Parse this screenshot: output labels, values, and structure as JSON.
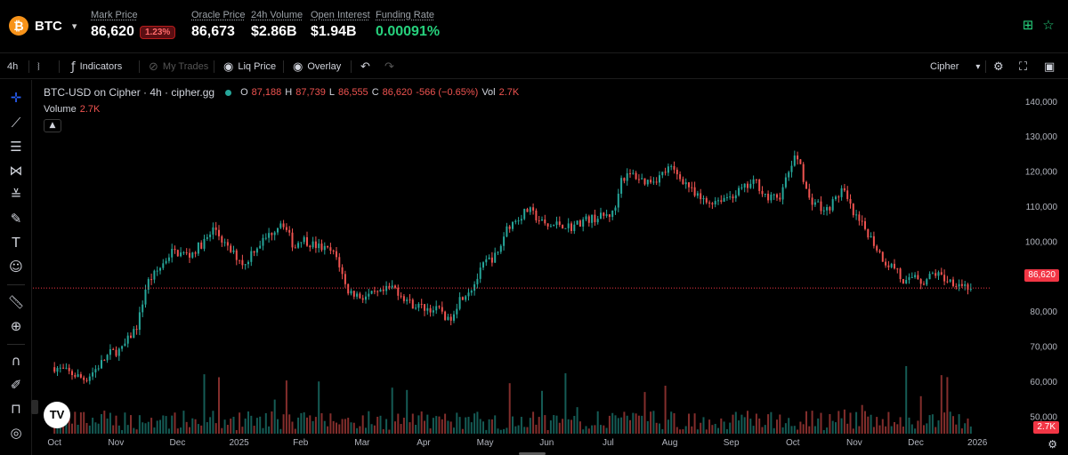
{
  "market": {
    "symbol": "BTC",
    "logo_glyph": "₿",
    "mark_price_label": "Mark Price",
    "mark_price": "86,620",
    "change_badge": "1.23%",
    "oracle_label": "Oracle Price",
    "oracle_price": "86,673",
    "volume_label": "24h Volume",
    "volume": "$2.86B",
    "oi_label": "Open Interest",
    "oi": "$1.94B",
    "funding_label": "Funding Rate",
    "funding": "0.00091%",
    "accent_green": "#26d07c",
    "icons": [
      "grid-icon",
      "star-icon"
    ]
  },
  "toolbar": {
    "interval": "4h",
    "indicators": "Indicators",
    "my_trades": "My Trades",
    "liq_price": "Liq Price",
    "overlay": "Overlay",
    "source": "Cipher"
  },
  "legend": {
    "title": "BTC-USD on Cipher · 4h · cipher.gg",
    "o_label": "O",
    "o": "87,188",
    "h_label": "H",
    "h": "87,739",
    "l_label": "L",
    "l": "86,555",
    "c_label": "C",
    "c": "86,620",
    "change": "-566 (−0.65%)",
    "vol_label": "Vol",
    "vol": "2.7K",
    "volume_label": "Volume",
    "volume_value": "2.7K"
  },
  "price_tag": "86,620",
  "volume_tag": "2.7K",
  "tv_logo": "TV",
  "colors": {
    "up": "#26a69a",
    "down": "#ef5350",
    "last_price": "#f23645",
    "active_tool": "#2962ff"
  },
  "chart_data": {
    "type": "candlestick",
    "y_ticks": [
      "140,000",
      "130,000",
      "120,000",
      "110,000",
      "100,000",
      "90,000",
      "80,000",
      "70,000",
      "60,000",
      "50,000"
    ],
    "ylim": [
      45000,
      143000
    ],
    "last_price": 86620,
    "x_ticks": [
      "Oct",
      "Nov",
      "Dec",
      "2025",
      "Feb",
      "Mar",
      "Apr",
      "May",
      "Jun",
      "Jul",
      "Aug",
      "Sep",
      "Oct",
      "Nov",
      "Dec",
      "2026"
    ],
    "x_tick_months": [
      0,
      1,
      2,
      3,
      4,
      5,
      6,
      7,
      8,
      9,
      10,
      11,
      12,
      13,
      14,
      15
    ],
    "xlim_months": [
      -0.35,
      15.2
    ],
    "series_close": [
      [
        0.0,
        64000
      ],
      [
        0.3,
        62000
      ],
      [
        0.5,
        60500
      ],
      [
        0.7,
        64000
      ],
      [
        0.9,
        68000
      ],
      [
        1.1,
        69000
      ],
      [
        1.2,
        72000
      ],
      [
        1.35,
        76000
      ],
      [
        1.5,
        88000
      ],
      [
        1.7,
        92000
      ],
      [
        1.9,
        97000
      ],
      [
        2.2,
        96000
      ],
      [
        2.5,
        101000
      ],
      [
        2.6,
        104000
      ],
      [
        2.8,
        98000
      ],
      [
        3.0,
        95000
      ],
      [
        3.1,
        93000
      ],
      [
        3.2,
        97000
      ],
      [
        3.5,
        102000
      ],
      [
        3.7,
        106000
      ],
      [
        3.9,
        98000
      ],
      [
        4.0,
        101000
      ],
      [
        4.2,
        99000
      ],
      [
        4.5,
        97000
      ],
      [
        4.6,
        95000
      ],
      [
        4.75,
        86000
      ],
      [
        5.0,
        84000
      ],
      [
        5.3,
        85000
      ],
      [
        5.5,
        87000
      ],
      [
        5.8,
        82000
      ],
      [
        6.0,
        81000
      ],
      [
        6.3,
        80000
      ],
      [
        6.4,
        77000
      ],
      [
        6.6,
        84000
      ],
      [
        6.8,
        87000
      ],
      [
        7.0,
        94000
      ],
      [
        7.2,
        96000
      ],
      [
        7.35,
        104000
      ],
      [
        7.5,
        106000
      ],
      [
        7.7,
        109000
      ],
      [
        8.0,
        104000
      ],
      [
        8.2,
        105000
      ],
      [
        8.4,
        104000
      ],
      [
        8.6,
        106000
      ],
      [
        8.9,
        107000
      ],
      [
        9.1,
        108000
      ],
      [
        9.2,
        118000
      ],
      [
        9.4,
        119000
      ],
      [
        9.6,
        117000
      ],
      [
        9.8,
        118000
      ],
      [
        10.0,
        121000
      ],
      [
        10.3,
        116000
      ],
      [
        10.4,
        113000
      ],
      [
        10.6,
        111000
      ],
      [
        10.8,
        112000
      ],
      [
        11.0,
        113000
      ],
      [
        11.3,
        116000
      ],
      [
        11.4,
        117000
      ],
      [
        11.6,
        112000
      ],
      [
        11.8,
        113000
      ],
      [
        12.0,
        123000
      ],
      [
        12.1,
        124000
      ],
      [
        12.25,
        112000
      ],
      [
        12.4,
        111000
      ],
      [
        12.5,
        108000
      ],
      [
        12.7,
        112000
      ],
      [
        12.8,
        115000
      ],
      [
        13.0,
        107000
      ],
      [
        13.2,
        103000
      ],
      [
        13.5,
        94000
      ],
      [
        13.7,
        92000
      ],
      [
        13.8,
        87000
      ],
      [
        14.0,
        91000
      ],
      [
        14.1,
        88000
      ],
      [
        14.3,
        91000
      ],
      [
        14.5,
        89000
      ],
      [
        14.7,
        88000
      ],
      [
        14.9,
        86620
      ]
    ]
  }
}
